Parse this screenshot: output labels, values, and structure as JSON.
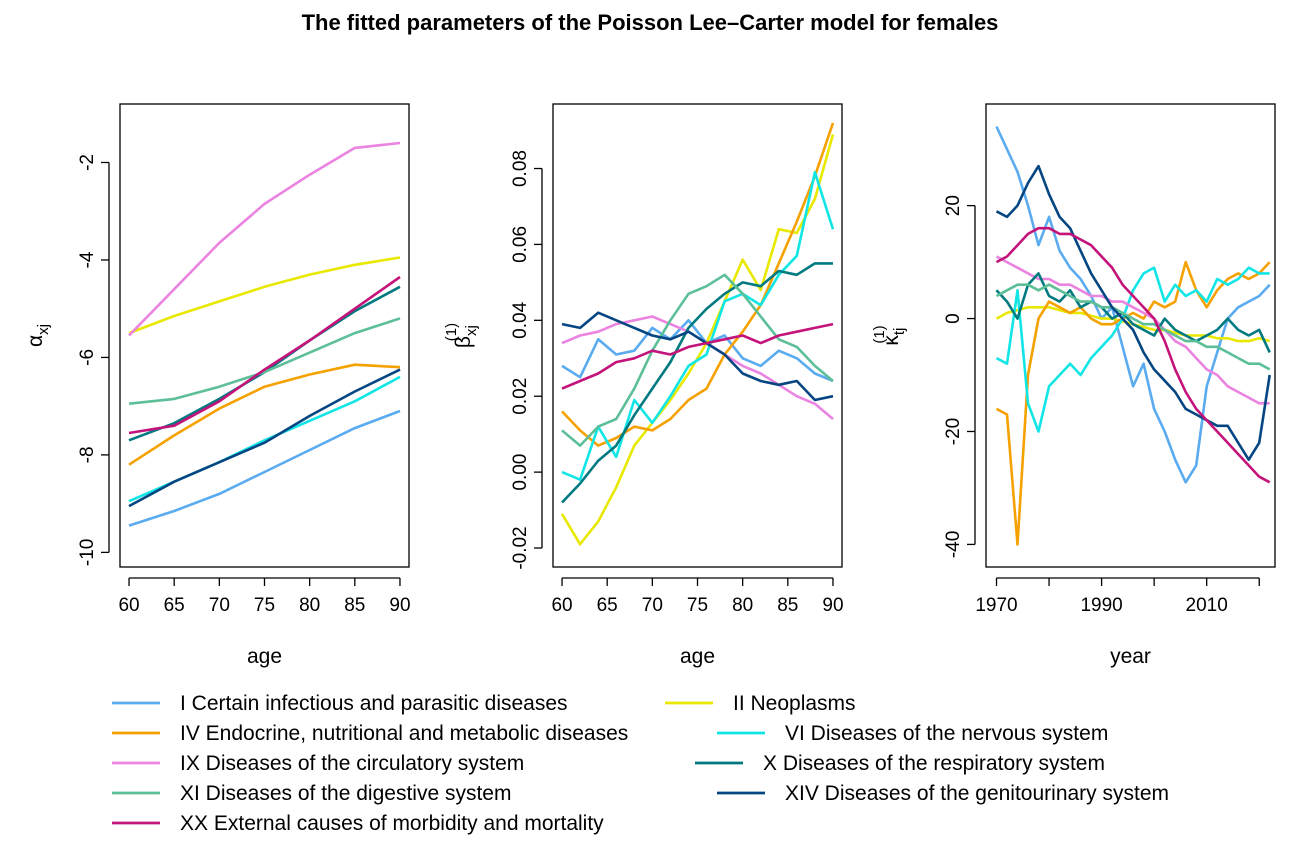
{
  "title": "The fitted parameters of the Poisson Lee–Carter model for females",
  "colors": [
    "#5aabf0",
    "#e8e800",
    "#f5a100",
    "#11e5e5",
    "#ea84e0",
    "#007a80",
    "#5cbf98",
    "#054682",
    "#c4137a"
  ],
  "legend": [
    {
      "label": "I Certain infectious and parasitic diseases"
    },
    {
      "label": "II Neoplasms"
    },
    {
      "label": "IV Endocrine, nutritional and metabolic diseases"
    },
    {
      "label": "VI Diseases of the nervous system"
    },
    {
      "label": "IX Diseases of the circulatory system"
    },
    {
      "label": "X Diseases of the respiratory system"
    },
    {
      "label": "XI Diseases of the digestive system"
    },
    {
      "label": "XIV Diseases of the genitourinary system"
    },
    {
      "label": "XX External causes of morbidity and mortality"
    }
  ],
  "chart_data": [
    {
      "type": "line",
      "panel": "alpha",
      "xlabel": "age",
      "ylabel": "α",
      "ylabel_sub": "xj",
      "xlim": [
        59,
        91
      ],
      "ylim": [
        -10.3,
        -0.8
      ],
      "xticks": [
        60,
        65,
        70,
        75,
        80,
        85,
        90
      ],
      "yticks": [
        -10,
        -8,
        -6,
        -4,
        -2
      ],
      "x": [
        60,
        65,
        70,
        75,
        80,
        85,
        90
      ],
      "series": [
        {
          "name": "I Certain infectious and parasitic diseases",
          "values": [
            -9.45,
            -9.15,
            -8.8,
            -8.35,
            -7.9,
            -7.45,
            -7.1
          ]
        },
        {
          "name": "II Neoplasms",
          "values": [
            -5.5,
            -5.15,
            -4.85,
            -4.55,
            -4.3,
            -4.1,
            -3.95
          ]
        },
        {
          "name": "IV Endocrine, nutritional and metabolic diseases",
          "values": [
            -8.2,
            -7.6,
            -7.05,
            -6.6,
            -6.35,
            -6.15,
            -6.2
          ]
        },
        {
          "name": "VI Diseases of the nervous system",
          "values": [
            -8.95,
            -8.55,
            -8.15,
            -7.7,
            -7.3,
            -6.9,
            -6.4
          ]
        },
        {
          "name": "IX Diseases of the circulatory system",
          "values": [
            -5.55,
            -4.6,
            -3.65,
            -2.85,
            -2.25,
            -1.7,
            -1.6
          ]
        },
        {
          "name": "X Diseases of the respiratory system",
          "values": [
            -7.7,
            -7.35,
            -6.85,
            -6.3,
            -5.65,
            -5.05,
            -4.55
          ]
        },
        {
          "name": "XI Diseases of the digestive system",
          "values": [
            -6.95,
            -6.85,
            -6.6,
            -6.3,
            -5.9,
            -5.5,
            -5.2
          ]
        },
        {
          "name": "XIV Diseases of the genitourinary system",
          "values": [
            -9.05,
            -8.55,
            -8.15,
            -7.75,
            -7.2,
            -6.7,
            -6.25
          ]
        },
        {
          "name": "XX External causes of morbidity and mortality",
          "values": [
            -7.55,
            -7.4,
            -6.9,
            -6.25,
            -5.65,
            -5.0,
            -4.35
          ]
        }
      ]
    },
    {
      "type": "line",
      "panel": "beta",
      "xlabel": "age",
      "ylabel": "β",
      "ylabel_sub": "xj",
      "ylabel_sup": "(1)",
      "xlim": [
        59,
        91
      ],
      "ylim": [
        -0.025,
        0.097
      ],
      "xticks": [
        60,
        65,
        70,
        75,
        80,
        85,
        90
      ],
      "yticks": [
        -0.02,
        0.0,
        0.02,
        0.04,
        0.06,
        0.08
      ],
      "ytick_labels": [
        "-0.02",
        "0.00",
        "0.02",
        "0.04",
        "0.06",
        "0.08"
      ],
      "x": [
        60,
        62,
        64,
        66,
        68,
        70,
        72,
        74,
        76,
        78,
        80,
        82,
        84,
        86,
        88,
        90
      ],
      "series": [
        {
          "name": "I Certain infectious and parasitic diseases",
          "values": [
            0.028,
            0.025,
            0.035,
            0.031,
            0.032,
            0.038,
            0.035,
            0.04,
            0.034,
            0.036,
            0.03,
            0.028,
            0.032,
            0.03,
            0.026,
            0.024
          ]
        },
        {
          "name": "II Neoplasms",
          "values": [
            -0.011,
            -0.019,
            -0.013,
            -0.004,
            0.007,
            0.013,
            0.019,
            0.026,
            0.034,
            0.045,
            0.056,
            0.048,
            0.064,
            0.063,
            0.072,
            0.089
          ]
        },
        {
          "name": "IV Endocrine, nutritional and metabolic diseases",
          "values": [
            0.016,
            0.011,
            0.007,
            0.009,
            0.012,
            0.011,
            0.014,
            0.019,
            0.022,
            0.031,
            0.037,
            0.044,
            0.055,
            0.066,
            0.078,
            0.092
          ]
        },
        {
          "name": "VI Diseases of the nervous system",
          "values": [
            0.0,
            -0.002,
            0.012,
            0.004,
            0.019,
            0.013,
            0.02,
            0.028,
            0.031,
            0.045,
            0.047,
            0.044,
            0.052,
            0.057,
            0.079,
            0.064
          ]
        },
        {
          "name": "IX Diseases of the circulatory system",
          "values": [
            0.034,
            0.036,
            0.037,
            0.039,
            0.04,
            0.041,
            0.039,
            0.037,
            0.034,
            0.031,
            0.028,
            0.026,
            0.023,
            0.02,
            0.018,
            0.014
          ]
        },
        {
          "name": "X Diseases of the respiratory system",
          "values": [
            -0.008,
            -0.003,
            0.003,
            0.007,
            0.015,
            0.022,
            0.029,
            0.038,
            0.043,
            0.047,
            0.05,
            0.049,
            0.053,
            0.052,
            0.055,
            0.055
          ]
        },
        {
          "name": "XI Diseases of the digestive system",
          "values": [
            0.011,
            0.007,
            0.012,
            0.014,
            0.022,
            0.032,
            0.04,
            0.047,
            0.049,
            0.052,
            0.047,
            0.041,
            0.035,
            0.033,
            0.028,
            0.024
          ]
        },
        {
          "name": "XIV Diseases of the genitourinary system",
          "values": [
            0.039,
            0.038,
            0.042,
            0.04,
            0.038,
            0.036,
            0.035,
            0.037,
            0.034,
            0.031,
            0.026,
            0.024,
            0.023,
            0.024,
            0.019,
            0.02
          ]
        },
        {
          "name": "XX External causes of morbidity and mortality",
          "values": [
            0.022,
            0.024,
            0.026,
            0.029,
            0.03,
            0.032,
            0.031,
            0.033,
            0.034,
            0.035,
            0.036,
            0.034,
            0.036,
            0.037,
            0.038,
            0.039
          ]
        }
      ]
    },
    {
      "type": "line",
      "panel": "kappa",
      "xlabel": "year",
      "ylabel": "κ",
      "ylabel_sub": "tj",
      "ylabel_sup": "(1)",
      "xlim": [
        1968,
        2023
      ],
      "ylim": [
        -44,
        38
      ],
      "xticks": [
        1970,
        1980,
        1990,
        2000,
        2010,
        2020
      ],
      "xtick_labels": [
        "1970",
        "",
        "1990",
        "",
        "2010",
        ""
      ],
      "yticks": [
        -40,
        -20,
        0,
        20
      ],
      "x": [
        1970,
        1972,
        1974,
        1976,
        1978,
        1980,
        1982,
        1984,
        1986,
        1988,
        1990,
        1992,
        1994,
        1996,
        1998,
        2000,
        2002,
        2004,
        2006,
        2008,
        2010,
        2012,
        2014,
        2016,
        2018,
        2020,
        2022
      ],
      "series": [
        {
          "name": "I Certain infectious and parasitic diseases",
          "values": [
            34,
            30,
            26,
            20,
            13,
            18,
            12,
            9,
            7,
            4,
            0,
            2,
            -5,
            -12,
            -8,
            -16,
            -20,
            -25,
            -29,
            -26,
            -12,
            -6,
            0,
            2,
            3,
            4,
            6
          ]
        },
        {
          "name": "II Neoplasms",
          "values": [
            0,
            1,
            1.5,
            2,
            2,
            2,
            1.5,
            1,
            1,
            0.5,
            0,
            0,
            -0.5,
            -1,
            -1.5,
            -2,
            -2,
            -2.5,
            -3,
            -3,
            -3,
            -3.5,
            -3.5,
            -4,
            -4,
            -3.5,
            -4
          ]
        },
        {
          "name": "IV Endocrine, nutritional and metabolic diseases",
          "values": [
            -16,
            -17,
            -40,
            -10,
            0,
            3,
            2,
            1,
            2,
            0,
            -1,
            -1,
            0,
            1,
            0,
            3,
            2,
            3,
            10,
            5,
            2,
            5,
            7,
            8,
            7,
            8,
            10
          ]
        },
        {
          "name": "VI Diseases of the nervous system",
          "values": [
            -7,
            -8,
            5,
            -15,
            -20,
            -12,
            -10,
            -8,
            -10,
            -7,
            -5,
            -3,
            0,
            5,
            8,
            9,
            3,
            6,
            4,
            5,
            3,
            7,
            6,
            7,
            9,
            8,
            8
          ]
        },
        {
          "name": "IX Diseases of the circulatory system",
          "values": [
            11,
            10,
            9,
            8,
            7,
            7,
            6,
            6,
            5,
            4,
            4,
            3,
            3,
            2,
            1,
            0,
            -2,
            -4,
            -5,
            -7,
            -9,
            -10,
            -12,
            -13,
            -14,
            -15,
            -15
          ]
        },
        {
          "name": "X Diseases of the respiratory system",
          "values": [
            5,
            3,
            0,
            6,
            8,
            4,
            3,
            5,
            2,
            3,
            2,
            0,
            1,
            -1,
            -2,
            -3,
            0,
            -2,
            -3,
            -4,
            -3,
            -2,
            0,
            -2,
            -3,
            -2,
            -6
          ]
        },
        {
          "name": "XI Diseases of the digestive system",
          "values": [
            4,
            5,
            6,
            6,
            5,
            6,
            5,
            4,
            3,
            3,
            2,
            2,
            1,
            0,
            -1,
            -1,
            -2,
            -3,
            -4,
            -4,
            -5,
            -5,
            -6,
            -7,
            -8,
            -8,
            -9
          ]
        },
        {
          "name": "XIV Diseases of the genitourinary system",
          "values": [
            19,
            18,
            20,
            24,
            27,
            22,
            18,
            16,
            12,
            8,
            5,
            2,
            0,
            -2,
            -6,
            -9,
            -11,
            -13,
            -16,
            -17,
            -18,
            -19,
            -19,
            -22,
            -25,
            -22,
            -10
          ]
        },
        {
          "name": "XX External causes of morbidity and mortality",
          "values": [
            10,
            11,
            13,
            15,
            16,
            16,
            15,
            15,
            14,
            13,
            11,
            9,
            6,
            4,
            2,
            0,
            -4,
            -9,
            -13,
            -16,
            -18,
            -20,
            -22,
            -24,
            -26,
            -28,
            -29
          ]
        }
      ]
    }
  ]
}
